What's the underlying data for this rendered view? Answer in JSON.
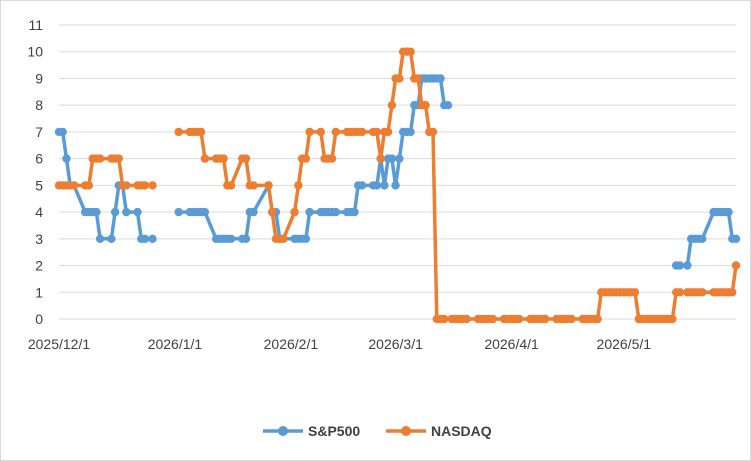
{
  "chart_data": {
    "type": "line",
    "title": "",
    "xlabel": "",
    "ylabel": "",
    "ylim": [
      0,
      11
    ],
    "y_ticks": [
      "0",
      "1",
      "2",
      "3",
      "4",
      "5",
      "6",
      "7",
      "8",
      "9",
      "10",
      "11"
    ],
    "x_range": [
      "2025-12-01",
      "2026-05-31"
    ],
    "x_ticks": [
      {
        "date": "2025-12-01",
        "label": "2025/12/1"
      },
      {
        "date": "2026-01-01",
        "label": "2026/1/1"
      },
      {
        "date": "2026-02-01",
        "label": "2026/2/1"
      },
      {
        "date": "2026-03-01",
        "label": "2026/3/1"
      },
      {
        "date": "2026-04-01",
        "label": "2026/4/1"
      },
      {
        "date": "2026-05-01",
        "label": "2026/5/1"
      }
    ],
    "grid": {
      "horizontal": true,
      "vertical": false
    },
    "legend_position": "bottom",
    "series": [
      {
        "name": "S&P500",
        "color": "#5B9BD5",
        "points": [
          [
            "2025-12-01",
            7
          ],
          [
            "2025-12-02",
            7
          ],
          [
            "2025-12-03",
            6
          ],
          [
            "2025-12-04",
            5
          ],
          [
            "2025-12-05",
            5
          ],
          [
            "2025-12-08",
            4
          ],
          [
            "2025-12-09",
            4
          ],
          [
            "2025-12-10",
            4
          ],
          [
            "2025-12-11",
            4
          ],
          [
            "2025-12-12",
            3
          ],
          [
            "2025-12-15",
            3
          ],
          [
            "2025-12-16",
            4
          ],
          [
            "2025-12-17",
            5
          ],
          [
            "2025-12-18",
            5
          ],
          [
            "2025-12-19",
            4
          ],
          [
            "2025-12-22",
            4
          ],
          [
            "2025-12-23",
            3
          ],
          [
            "2025-12-24",
            3
          ],
          [
            "2025-12-26",
            3
          ],
          [
            "2026-01-02",
            4
          ],
          [
            "2026-01-05",
            4
          ],
          [
            "2026-01-06",
            4
          ],
          [
            "2026-01-07",
            4
          ],
          [
            "2026-01-08",
            4
          ],
          [
            "2026-01-09",
            4
          ],
          [
            "2026-01-12",
            3
          ],
          [
            "2026-01-13",
            3
          ],
          [
            "2026-01-14",
            3
          ],
          [
            "2026-01-15",
            3
          ],
          [
            "2026-01-16",
            3
          ],
          [
            "2026-01-19",
            3
          ],
          [
            "2026-01-20",
            3
          ],
          [
            "2026-01-21",
            4
          ],
          [
            "2026-01-22",
            4
          ],
          [
            "2026-01-26",
            5
          ],
          [
            "2026-01-27",
            4
          ],
          [
            "2026-01-28",
            4
          ],
          [
            "2026-01-29",
            3
          ],
          [
            "2026-01-30",
            3
          ],
          [
            "2026-02-02",
            3
          ],
          [
            "2026-02-03",
            3
          ],
          [
            "2026-02-04",
            3
          ],
          [
            "2026-02-05",
            3
          ],
          [
            "2026-02-06",
            4
          ],
          [
            "2026-02-09",
            4
          ],
          [
            "2026-02-10",
            4
          ],
          [
            "2026-02-11",
            4
          ],
          [
            "2026-02-12",
            4
          ],
          [
            "2026-02-13",
            4
          ],
          [
            "2026-02-16",
            4
          ],
          [
            "2026-02-17",
            4
          ],
          [
            "2026-02-18",
            4
          ],
          [
            "2026-02-19",
            5
          ],
          [
            "2026-02-20",
            5
          ],
          [
            "2026-02-23",
            5
          ],
          [
            "2026-02-24",
            5
          ],
          [
            "2026-02-25",
            6
          ],
          [
            "2026-02-26",
            5
          ],
          [
            "2026-02-27",
            6
          ],
          [
            "2026-02-28",
            6
          ],
          [
            "2026-03-01",
            5
          ],
          [
            "2026-03-02",
            6
          ],
          [
            "2026-03-03",
            7
          ],
          [
            "2026-03-04",
            7
          ],
          [
            "2026-03-05",
            7
          ],
          [
            "2026-03-06",
            8
          ],
          [
            "2026-03-07",
            8
          ],
          [
            "2026-03-08",
            9
          ],
          [
            "2026-03-09",
            9
          ],
          [
            "2026-03-10",
            9
          ],
          [
            "2026-03-11",
            9
          ],
          [
            "2026-03-12",
            9
          ],
          [
            "2026-03-13",
            9
          ],
          [
            "2026-03-14",
            8
          ],
          [
            "2026-03-15",
            8
          ],
          [
            "2026-05-15",
            2
          ],
          [
            "2026-05-16",
            2
          ],
          [
            "2026-05-18",
            2
          ],
          [
            "2026-05-19",
            3
          ],
          [
            "2026-05-20",
            3
          ],
          [
            "2026-05-21",
            3
          ],
          [
            "2026-05-22",
            3
          ],
          [
            "2026-05-25",
            4
          ],
          [
            "2026-05-26",
            4
          ],
          [
            "2026-05-27",
            4
          ],
          [
            "2026-05-28",
            4
          ],
          [
            "2026-05-29",
            4
          ],
          [
            "2026-05-30",
            3
          ],
          [
            "2026-05-31",
            3
          ]
        ]
      },
      {
        "name": "NASDAQ",
        "color": "#ED7D31",
        "points": [
          [
            "2025-12-01",
            5
          ],
          [
            "2025-12-02",
            5
          ],
          [
            "2025-12-03",
            5
          ],
          [
            "2025-12-04",
            5
          ],
          [
            "2025-12-05",
            5
          ],
          [
            "2025-12-08",
            5
          ],
          [
            "2025-12-09",
            5
          ],
          [
            "2025-12-10",
            6
          ],
          [
            "2025-12-11",
            6
          ],
          [
            "2025-12-12",
            6
          ],
          [
            "2025-12-15",
            6
          ],
          [
            "2025-12-16",
            6
          ],
          [
            "2025-12-17",
            6
          ],
          [
            "2025-12-18",
            5
          ],
          [
            "2025-12-19",
            5
          ],
          [
            "2025-12-22",
            5
          ],
          [
            "2025-12-23",
            5
          ],
          [
            "2025-12-24",
            5
          ],
          [
            "2025-12-26",
            5
          ],
          [
            "2026-01-02",
            7
          ],
          [
            "2026-01-05",
            7
          ],
          [
            "2026-01-06",
            7
          ],
          [
            "2026-01-07",
            7
          ],
          [
            "2026-01-08",
            7
          ],
          [
            "2026-01-09",
            6
          ],
          [
            "2026-01-12",
            6
          ],
          [
            "2026-01-13",
            6
          ],
          [
            "2026-01-14",
            6
          ],
          [
            "2026-01-15",
            5
          ],
          [
            "2026-01-16",
            5
          ],
          [
            "2026-01-19",
            6
          ],
          [
            "2026-01-20",
            6
          ],
          [
            "2026-01-21",
            5
          ],
          [
            "2026-01-22",
            5
          ],
          [
            "2026-01-26",
            5
          ],
          [
            "2026-01-27",
            4
          ],
          [
            "2026-01-28",
            3
          ],
          [
            "2026-01-29",
            3
          ],
          [
            "2026-01-30",
            3
          ],
          [
            "2026-02-02",
            4
          ],
          [
            "2026-02-03",
            5
          ],
          [
            "2026-02-04",
            6
          ],
          [
            "2026-02-05",
            6
          ],
          [
            "2026-02-06",
            7
          ],
          [
            "2026-02-09",
            7
          ],
          [
            "2026-02-10",
            6
          ],
          [
            "2026-02-11",
            6
          ],
          [
            "2026-02-12",
            6
          ],
          [
            "2026-02-13",
            7
          ],
          [
            "2026-02-16",
            7
          ],
          [
            "2026-02-17",
            7
          ],
          [
            "2026-02-18",
            7
          ],
          [
            "2026-02-19",
            7
          ],
          [
            "2026-02-20",
            7
          ],
          [
            "2026-02-23",
            7
          ],
          [
            "2026-02-24",
            7
          ],
          [
            "2026-02-25",
            6
          ],
          [
            "2026-02-26",
            7
          ],
          [
            "2026-02-27",
            7
          ],
          [
            "2026-02-28",
            8
          ],
          [
            "2026-03-01",
            9
          ],
          [
            "2026-03-02",
            9
          ],
          [
            "2026-03-03",
            10
          ],
          [
            "2026-03-04",
            10
          ],
          [
            "2026-03-05",
            10
          ],
          [
            "2026-03-06",
            9
          ],
          [
            "2026-03-07",
            9
          ],
          [
            "2026-03-08",
            8
          ],
          [
            "2026-03-09",
            8
          ],
          [
            "2026-03-10",
            7
          ],
          [
            "2026-03-11",
            7
          ],
          [
            "2026-03-12",
            0
          ],
          [
            "2026-03-13",
            0
          ],
          [
            "2026-03-14",
            0
          ],
          [
            "2026-03-16",
            0
          ],
          [
            "2026-03-17",
            0
          ],
          [
            "2026-03-18",
            0
          ],
          [
            "2026-03-19",
            0
          ],
          [
            "2026-03-20",
            0
          ],
          [
            "2026-03-23",
            0
          ],
          [
            "2026-03-24",
            0
          ],
          [
            "2026-03-25",
            0
          ],
          [
            "2026-03-26",
            0
          ],
          [
            "2026-03-27",
            0
          ],
          [
            "2026-03-30",
            0
          ],
          [
            "2026-03-31",
            0
          ],
          [
            "2026-04-01",
            0
          ],
          [
            "2026-04-02",
            0
          ],
          [
            "2026-04-03",
            0
          ],
          [
            "2026-04-06",
            0
          ],
          [
            "2026-04-07",
            0
          ],
          [
            "2026-04-08",
            0
          ],
          [
            "2026-04-09",
            0
          ],
          [
            "2026-04-10",
            0
          ],
          [
            "2026-04-13",
            0
          ],
          [
            "2026-04-14",
            0
          ],
          [
            "2026-04-15",
            0
          ],
          [
            "2026-04-16",
            0
          ],
          [
            "2026-04-17",
            0
          ],
          [
            "2026-04-20",
            0
          ],
          [
            "2026-04-21",
            0
          ],
          [
            "2026-04-22",
            0
          ],
          [
            "2026-04-23",
            0
          ],
          [
            "2026-04-24",
            0
          ],
          [
            "2026-04-25",
            1
          ],
          [
            "2026-04-26",
            1
          ],
          [
            "2026-04-27",
            1
          ],
          [
            "2026-04-28",
            1
          ],
          [
            "2026-04-29",
            1
          ],
          [
            "2026-04-30",
            1
          ],
          [
            "2026-05-01",
            1
          ],
          [
            "2026-05-02",
            1
          ],
          [
            "2026-05-03",
            1
          ],
          [
            "2026-05-04",
            1
          ],
          [
            "2026-05-05",
            0
          ],
          [
            "2026-05-06",
            0
          ],
          [
            "2026-05-07",
            0
          ],
          [
            "2026-05-08",
            0
          ],
          [
            "2026-05-09",
            0
          ],
          [
            "2026-05-10",
            0
          ],
          [
            "2026-05-11",
            0
          ],
          [
            "2026-05-12",
            0
          ],
          [
            "2026-05-13",
            0
          ],
          [
            "2026-05-14",
            0
          ],
          [
            "2026-05-15",
            1
          ],
          [
            "2026-05-16",
            1
          ],
          [
            "2026-05-18",
            1
          ],
          [
            "2026-05-19",
            1
          ],
          [
            "2026-05-20",
            1
          ],
          [
            "2026-05-21",
            1
          ],
          [
            "2026-05-22",
            1
          ],
          [
            "2026-05-25",
            1
          ],
          [
            "2026-05-26",
            1
          ],
          [
            "2026-05-27",
            1
          ],
          [
            "2026-05-28",
            1
          ],
          [
            "2026-05-29",
            1
          ],
          [
            "2026-05-30",
            1
          ],
          [
            "2026-05-31",
            2
          ]
        ]
      }
    ]
  }
}
